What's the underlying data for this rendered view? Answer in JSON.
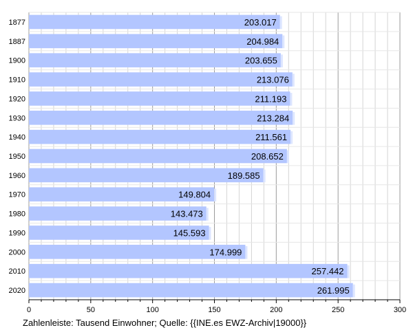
{
  "chart_data": {
    "type": "bar",
    "orientation": "horizontal",
    "categories": [
      "1877",
      "1887",
      "1900",
      "1910",
      "1920",
      "1930",
      "1940",
      "1950",
      "1960",
      "1970",
      "1980",
      "1990",
      "2000",
      "2010",
      "2020"
    ],
    "values": [
      203.017,
      204.984,
      203.655,
      213.076,
      211.193,
      213.284,
      211.561,
      208.652,
      189.585,
      149.804,
      143.473,
      145.593,
      174.999,
      257.442,
      261.995
    ],
    "value_labels": [
      "203.017",
      "204.984",
      "203.655",
      "213.076",
      "211.193",
      "213.284",
      "211.561",
      "208.652",
      "189.585",
      "149.804",
      "143.473",
      "145.593",
      "174.999",
      "257.442",
      "261.995"
    ],
    "xlim": [
      0,
      300
    ],
    "xticks": [
      0,
      50,
      100,
      150,
      200,
      250,
      300
    ],
    "xtick_labels": [
      "0",
      "50",
      "100",
      "150",
      "200",
      "250",
      "300"
    ],
    "grid": true,
    "bar_color": "#b3c6ff"
  },
  "caption": "Zahlenleiste: Tausend Einwohner; Quelle: {{INE.es EWZ-Archiv|19000}}"
}
